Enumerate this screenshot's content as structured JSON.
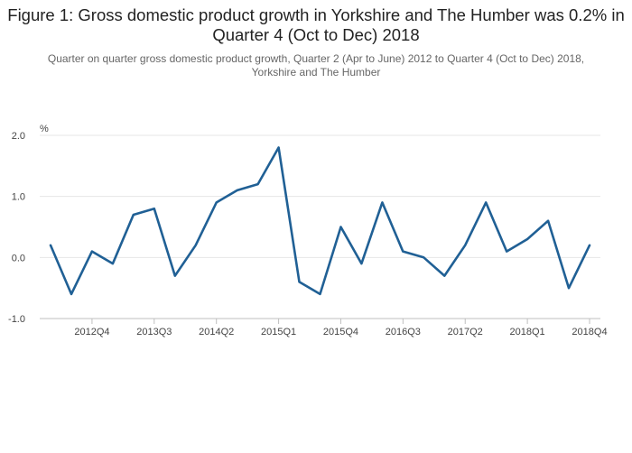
{
  "chart_data": {
    "type": "line",
    "title": "Figure 1: Gross domestic product growth in Yorkshire and The Humber was 0.2% in Quarter 4 (Oct to Dec) 2018",
    "subtitle": "Quarter on quarter gross domestic product growth, Quarter 2 (Apr to June) 2012 to Quarter 4 (Oct to Dec) 2018, Yorkshire and The Humber",
    "ylabel": "%",
    "xlabel": "",
    "ylim": [
      -1.0,
      2.0
    ],
    "yticks": [
      "2.0",
      "1.0",
      "0.0",
      "-1.0"
    ],
    "ytick_values": [
      2.0,
      1.0,
      0.0,
      -1.0
    ],
    "grid": true,
    "x": [
      "2012Q2",
      "2012Q3",
      "2012Q4",
      "2013Q1",
      "2013Q2",
      "2013Q3",
      "2013Q4",
      "2014Q1",
      "2014Q2",
      "2014Q3",
      "2014Q4",
      "2015Q1",
      "2015Q2",
      "2015Q3",
      "2015Q4",
      "2016Q1",
      "2016Q2",
      "2016Q3",
      "2016Q4",
      "2017Q1",
      "2017Q2",
      "2017Q3",
      "2017Q4",
      "2018Q1",
      "2018Q2",
      "2018Q3",
      "2018Q4"
    ],
    "xticks": [
      "2012Q4",
      "2013Q3",
      "2014Q2",
      "2015Q1",
      "2015Q4",
      "2016Q3",
      "2017Q2",
      "2018Q1",
      "2018Q4"
    ],
    "series": [
      {
        "color": "#206095",
        "values": [
          0.2,
          -0.6,
          0.1,
          -0.1,
          0.7,
          0.8,
          -0.3,
          0.2,
          0.9,
          1.1,
          1.2,
          1.8,
          -0.4,
          -0.6,
          0.5,
          -0.1,
          0.9,
          0.1,
          0.0,
          -0.3,
          0.2,
          0.9,
          0.1,
          0.3,
          0.6,
          -0.5,
          0.2
        ]
      }
    ]
  },
  "colors": {
    "line": "#206095",
    "grid": "#e6e6e6",
    "axis": "#bfbfbf"
  }
}
